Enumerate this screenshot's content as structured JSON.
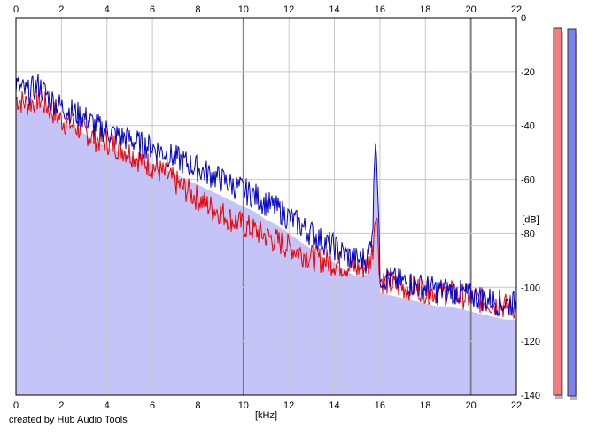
{
  "footer": {
    "credit": "created by Hub Audio Tools"
  },
  "chart_data": {
    "type": "line",
    "title": "",
    "xlabel": "[kHz]",
    "ylabel": "[dB]",
    "xlim": [
      0,
      22
    ],
    "ylim": [
      -140,
      0
    ],
    "x_ticks": [
      "0",
      "2",
      "4",
      "6",
      "8",
      "10",
      "12",
      "14",
      "16",
      "18",
      "20",
      "22"
    ],
    "y_ticks": [
      "0",
      "-20",
      "-40",
      "-60",
      "-80",
      "-100",
      "-120",
      "-140"
    ],
    "grid": true,
    "x_axis_labels_top_and_bottom": true,
    "colors": {
      "fill": "#c4c4f8",
      "series_blue": "#0000cc",
      "series_red": "#ee0000",
      "grid_minor": "#c8c8c8",
      "grid_major": "#808080",
      "meter_left": "#f08080",
      "meter_right": "#8080f0"
    },
    "series": [
      {
        "x": [
          0,
          0.5,
          1,
          1.5,
          2,
          2.5,
          3,
          3.5,
          4,
          4.5,
          5,
          5.5,
          6,
          6.5,
          7,
          7.5,
          8,
          8.5,
          9,
          9.5,
          10,
          10.5,
          11,
          11.5,
          12,
          12.5,
          13,
          13.5,
          14,
          14.5,
          15,
          15.5,
          15.7,
          15.8,
          15.9,
          16,
          16.5,
          17,
          17.5,
          18,
          18.5,
          19,
          19.5,
          20,
          20.5,
          21,
          21.5,
          22
        ],
        "values": [
          -25,
          -28,
          -25,
          -30,
          -33,
          -35,
          -37,
          -40,
          -42,
          -44,
          -45,
          -47,
          -48,
          -50,
          -52,
          -54,
          -56,
          -58,
          -60,
          -62,
          -64,
          -66,
          -69,
          -71,
          -74,
          -77,
          -80,
          -83,
          -85,
          -88,
          -90,
          -89,
          -75,
          -40,
          -60,
          -96,
          -97,
          -98,
          -99,
          -100,
          -101,
          -101,
          -102,
          -103,
          -104,
          -105,
          -106,
          -106
        ]
      },
      {
        "x": [
          0,
          0.5,
          1,
          1.5,
          2,
          2.5,
          3,
          3.5,
          4,
          4.5,
          5,
          5.5,
          6,
          6.5,
          7,
          7.5,
          8,
          8.5,
          9,
          9.5,
          10,
          10.5,
          11,
          11.5,
          12,
          12.5,
          13,
          13.5,
          14,
          14.5,
          15,
          15.5,
          15.7,
          15.8,
          15.9,
          16,
          16.5,
          17,
          17.5,
          18,
          18.5,
          19,
          19.5,
          20,
          20.5,
          21,
          21.5,
          22
        ],
        "values": [
          -30,
          -32,
          -30,
          -34,
          -38,
          -40,
          -42,
          -45,
          -46,
          -48,
          -50,
          -53,
          -55,
          -58,
          -61,
          -64,
          -67,
          -70,
          -72,
          -75,
          -77,
          -79,
          -81,
          -83,
          -85,
          -87,
          -89,
          -90,
          -91,
          -92,
          -93,
          -92,
          -85,
          -70,
          -78,
          -97,
          -99,
          -100,
          -100,
          -101,
          -102,
          -102,
          -103,
          -104,
          -105,
          -106,
          -107,
          -107
        ]
      }
    ]
  }
}
